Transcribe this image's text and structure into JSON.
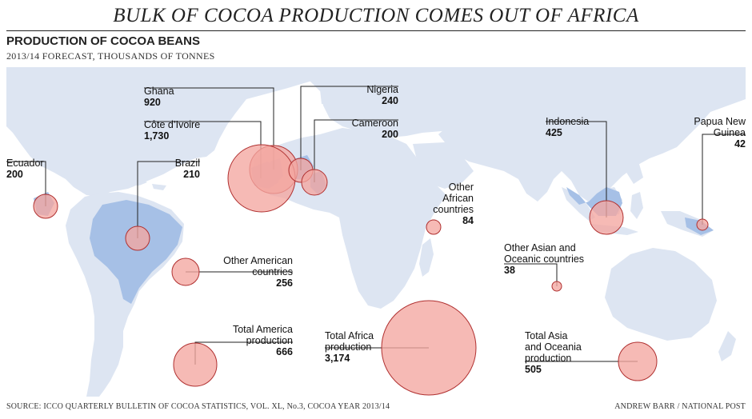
{
  "header": {
    "title": "BULK OF COCOA PRODUCTION COMES OUT OF AFRICA",
    "subtitle": "PRODUCTION OF COCOA BEANS",
    "units": "2013/14 FORECAST, THOUSANDS OF TONNES"
  },
  "colors": {
    "land": "#dde5f2",
    "producer_land": "#a6c0e6",
    "bubble_fill": "#f4a6a0",
    "bubble_stroke": "#b03030",
    "leader": "#222222"
  },
  "items": [
    {
      "id": "ghana",
      "label_lines": [
        "Ghana"
      ],
      "value": "920",
      "region": "Africa"
    },
    {
      "id": "cote",
      "label_lines": [
        "Côte d’Ivoire"
      ],
      "value": "1,730",
      "region": "Africa"
    },
    {
      "id": "nigeria",
      "label_lines": [
        "Nigeria"
      ],
      "value": "240",
      "region": "Africa"
    },
    {
      "id": "cameroon",
      "label_lines": [
        "Cameroon"
      ],
      "value": "200",
      "region": "Africa"
    },
    {
      "id": "ecuador",
      "label_lines": [
        "Ecuador"
      ],
      "value": "200",
      "region": "America"
    },
    {
      "id": "brazil",
      "label_lines": [
        "Brazil"
      ],
      "value": "210",
      "region": "America"
    },
    {
      "id": "other_african",
      "label_lines": [
        "Other",
        "African",
        "countries"
      ],
      "value": "84",
      "region": "Africa"
    },
    {
      "id": "indonesia",
      "label_lines": [
        "Indonesia"
      ],
      "value": "425",
      "region": "Asia and Oceania"
    },
    {
      "id": "png",
      "label_lines": [
        "Papua New",
        "Guinea"
      ],
      "value": "42",
      "region": "Asia and Oceania"
    },
    {
      "id": "other_american",
      "label_lines": [
        "Other American",
        "countries"
      ],
      "value": "256",
      "region": "America"
    },
    {
      "id": "other_asian",
      "label_lines": [
        "Other Asian and",
        "Oceanic countries"
      ],
      "value": "38",
      "region": "Asia and Oceania"
    },
    {
      "id": "total_america",
      "label_lines": [
        "Total America",
        "production"
      ],
      "value": "666",
      "region": "America"
    },
    {
      "id": "total_africa",
      "label_lines": [
        "Total Africa",
        "production"
      ],
      "value": "3,174",
      "region": "Africa"
    },
    {
      "id": "total_asia",
      "label_lines": [
        "Total Asia",
        "and Oceania",
        "production"
      ],
      "value": "505",
      "region": "Asia and Oceania"
    }
  ],
  "footer": {
    "source": "SOURCE: ICCO QUARTERLY BULLETIN OF COCOA STATISTICS, VOL. XL, No.3, COCOA YEAR 2013/14",
    "credit": "ANDREW BARR / NATIONAL POST"
  }
}
